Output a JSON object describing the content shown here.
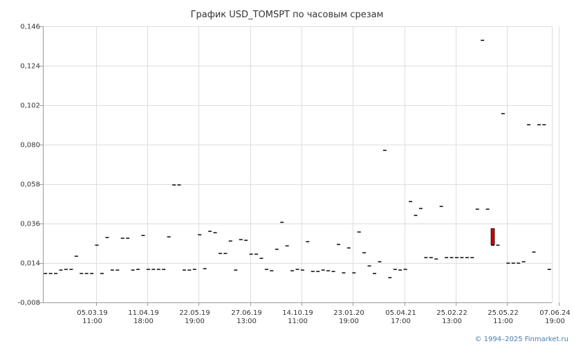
{
  "chart_data": {
    "type": "candlestick",
    "title": "График USD_TOMSPT по часовым срезам",
    "xlabel": "",
    "ylabel": "",
    "ylim": [
      -0.008,
      0.146
    ],
    "y_ticks": [
      "-0,008",
      "0,014",
      "0,036",
      "0,058",
      "0,080",
      "0,102",
      "0,124",
      "0,146"
    ],
    "y_tick_values": [
      -0.008,
      0.014,
      0.036,
      0.058,
      0.08,
      0.102,
      0.124,
      0.146
    ],
    "x_ticks": [
      {
        "date": "05.03.19",
        "time": "11:00",
        "index": 9
      },
      {
        "date": "11.04.19",
        "time": "18:00",
        "index": 19
      },
      {
        "date": "22.05.19",
        "time": "19:00",
        "index": 29
      },
      {
        "date": "27.06.19",
        "time": "13:00",
        "index": 39
      },
      {
        "date": "14.10.19",
        "time": "11:00",
        "index": 49
      },
      {
        "date": "23.01.20",
        "time": "19:00",
        "index": 59
      },
      {
        "date": "05.04.21",
        "time": "17:00",
        "index": 69
      },
      {
        "date": "25.02.22",
        "time": "13:00",
        "index": 79
      },
      {
        "date": "25.05.22",
        "time": "11:00",
        "index": 89
      },
      {
        "date": "07.06.24",
        "time": "19:00",
        "index": 99
      }
    ],
    "grid": true,
    "values": [
      0.0081,
      0.0081,
      0.0081,
      0.0102,
      0.0104,
      0.0106,
      0.0177,
      0.0081,
      0.0081,
      0.0081,
      0.0242,
      0.0081,
      0.0284,
      0.0102,
      0.0102,
      0.0279,
      0.0278,
      0.0102,
      0.0106,
      0.0293,
      0.0106,
      0.0106,
      0.0106,
      0.0106,
      0.0288,
      0.0576,
      0.0576,
      0.0102,
      0.0102,
      0.0106,
      0.0298,
      0.011,
      0.0318,
      0.0309,
      0.0194,
      0.0194,
      0.0264,
      0.0102,
      0.0273,
      0.0268,
      0.0189,
      0.0189,
      0.0168,
      0.0106,
      0.0098,
      0.0218,
      0.0368,
      0.0238,
      0.0098,
      0.0106,
      0.0102,
      0.026,
      0.0094,
      0.0094,
      0.0102,
      0.0098,
      0.0094,
      0.0243,
      0.0085,
      0.0224,
      0.0085,
      0.0312,
      0.0197,
      0.0123,
      0.0081,
      0.0148,
      0.0768,
      0.0058,
      0.0106,
      0.0102,
      0.0106,
      0.0485,
      0.0405,
      0.0444,
      0.0169,
      0.0169,
      0.0162,
      0.0458,
      0.0169,
      0.0169,
      0.0169,
      0.0169,
      0.0169,
      0.0169,
      0.0442,
      0.1383,
      0.0442,
      0.0242,
      0.0242,
      0.0974,
      0.0141,
      0.0141,
      0.0141,
      0.0149,
      0.0911,
      0.0202,
      0.0911,
      0.0911,
      0.0106
    ],
    "candle": {
      "index": 87,
      "open": 0.0332,
      "close": 0.0242,
      "color": "#cc0000"
    }
  },
  "footer": {
    "copyright": "© 1994–2025 Finmarket.ru"
  }
}
